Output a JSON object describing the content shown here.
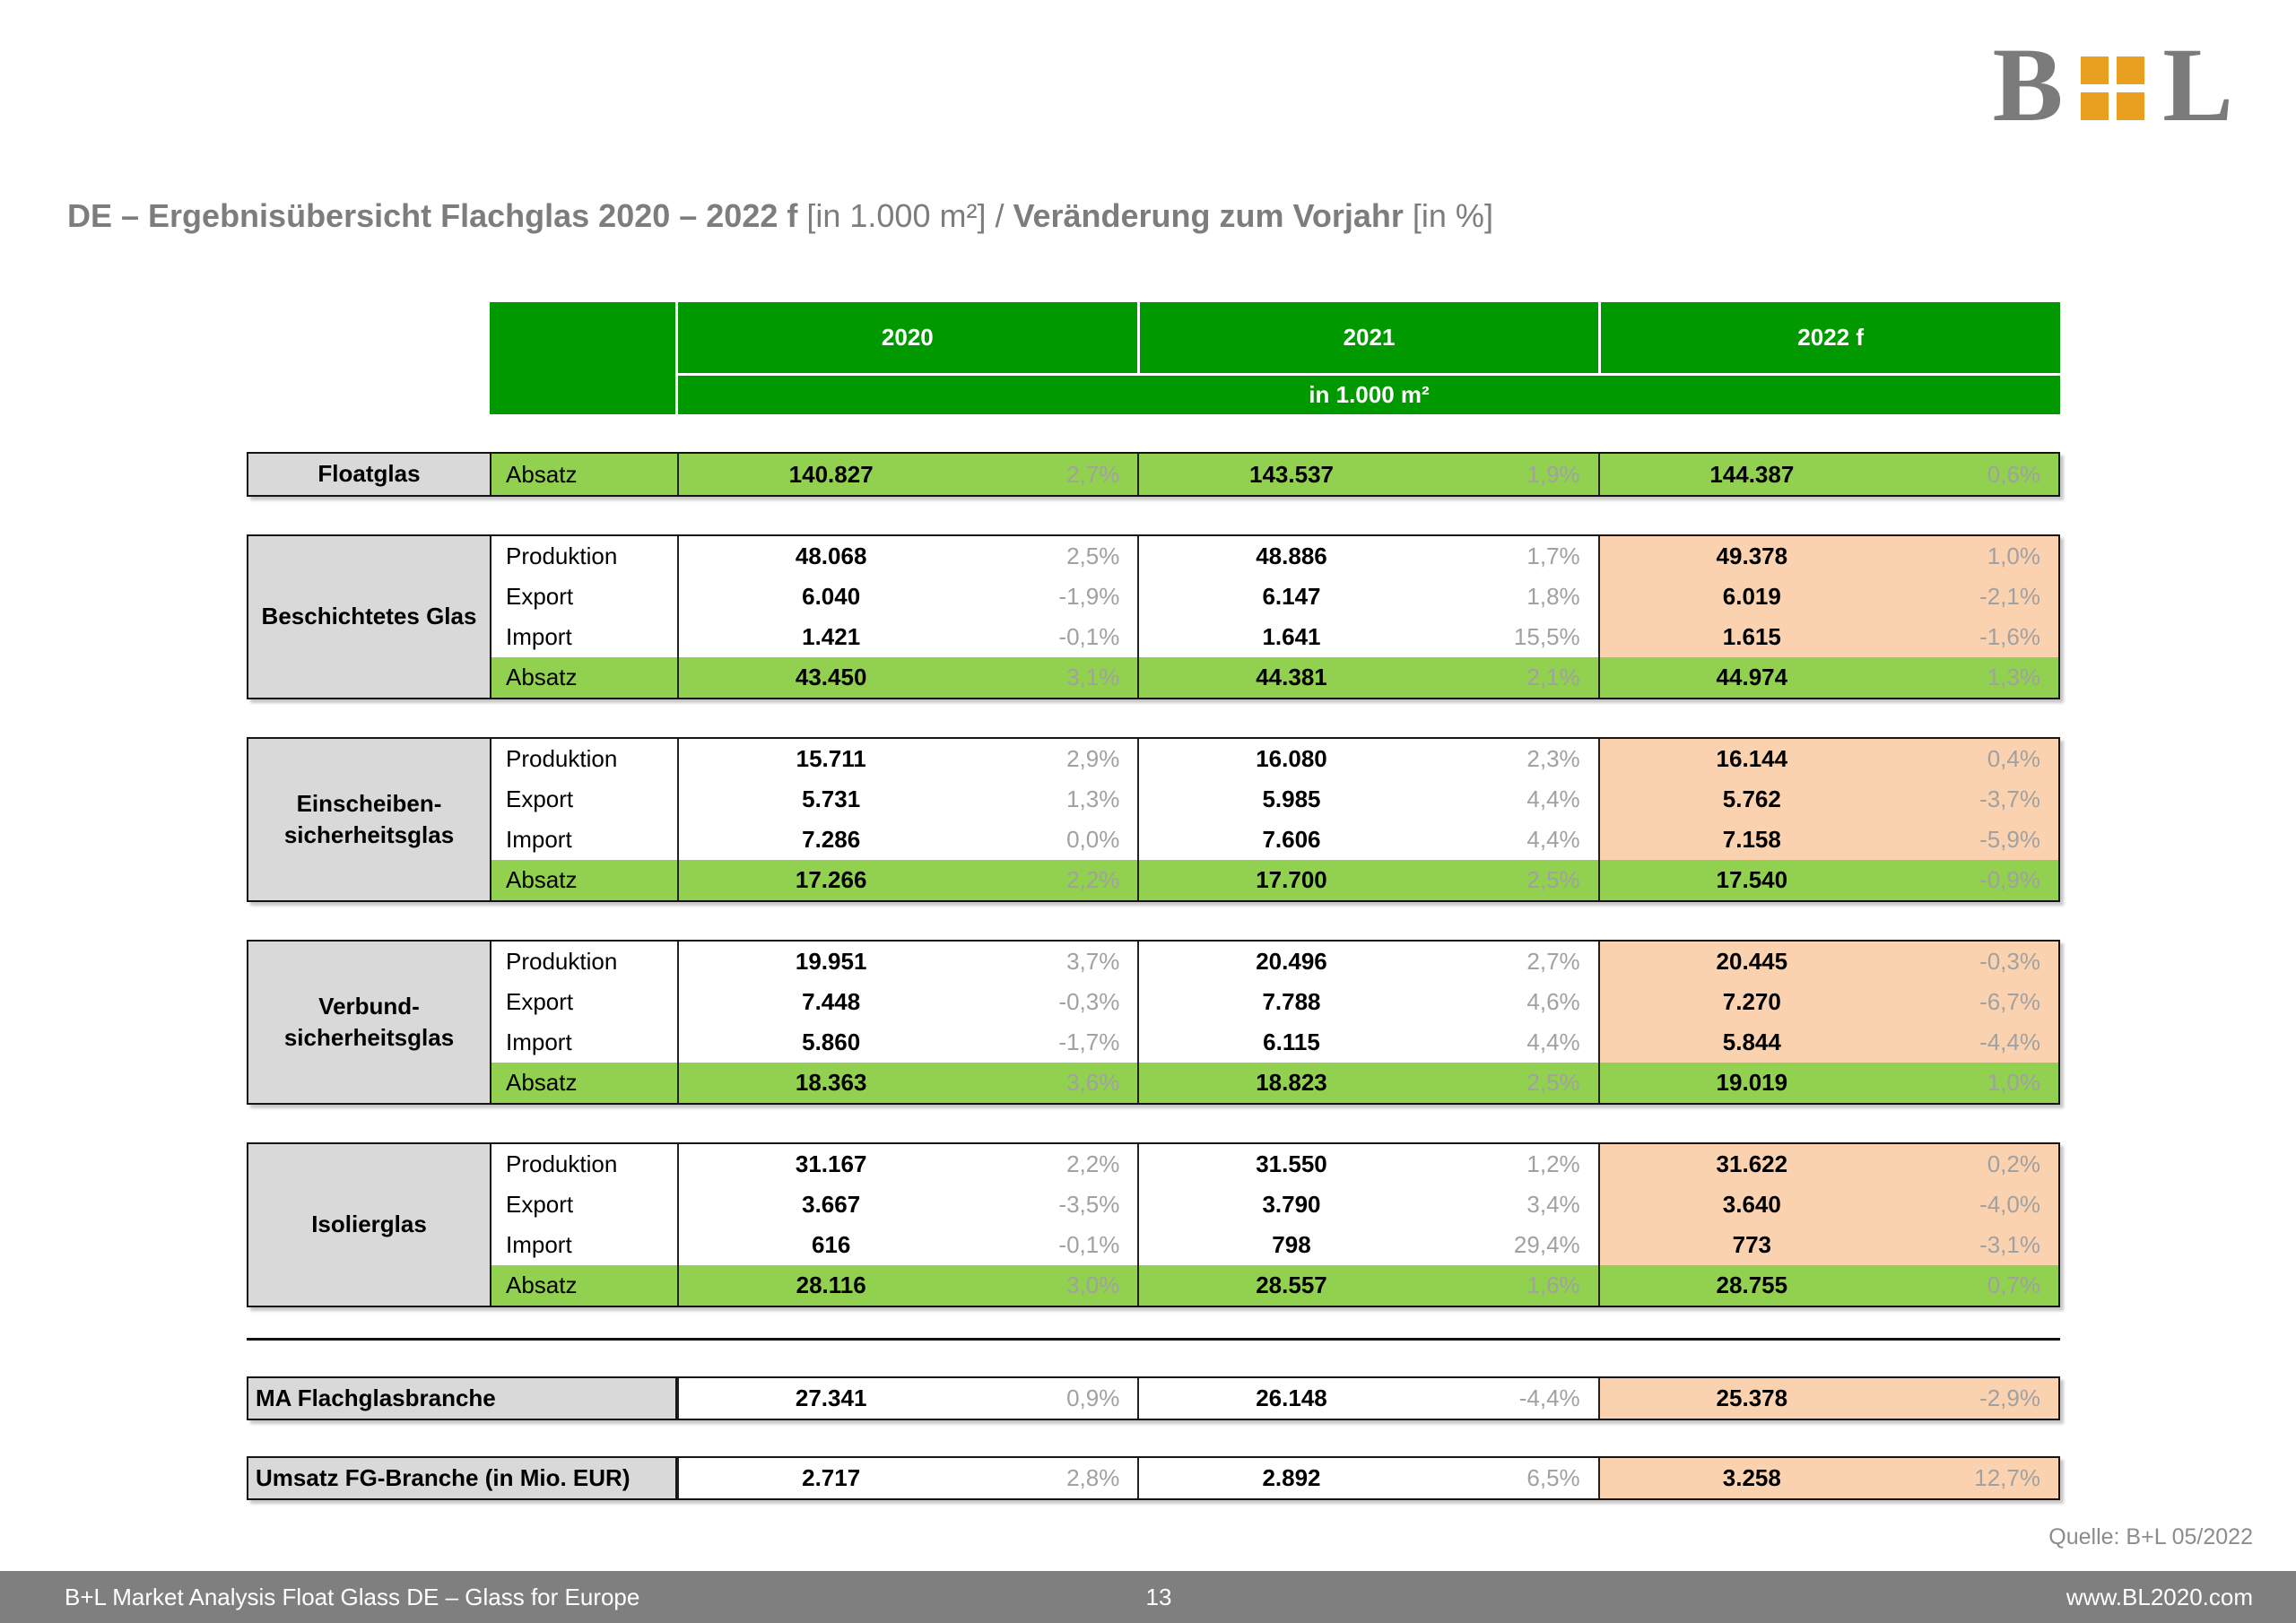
{
  "logo": {
    "letter_left": "B",
    "letter_right": "L",
    "squares_color": "#E9A021",
    "letters_color": "#7B7B7B"
  },
  "title": {
    "bold1": "DE – Ergebnisübersicht Flachglas 2020 – 2022 f",
    "light1": " [in 1.000 m²] / ",
    "bold2": "Veränderung zum Vorjahr",
    "light2": " [in %]"
  },
  "table": {
    "years": [
      "2020",
      "2021",
      "2022 f"
    ],
    "unit_header": "in 1.000 m²",
    "colors": {
      "header_green": "#009A00",
      "absatz_green": "#92D050",
      "forecast_peach": "#FBD2AF",
      "label_gray": "#D9D9D9",
      "percent_gray": "#A1A1A1"
    },
    "sections": [
      {
        "label_lines": [
          "Floatglas"
        ],
        "rows": [
          {
            "sub": "Absatz",
            "kind": "absatz",
            "cells": [
              [
                "140.827",
                "2,7%"
              ],
              [
                "143.537",
                "1,9%"
              ],
              [
                "144.387",
                "0,6%"
              ]
            ]
          }
        ]
      },
      {
        "label_lines": [
          "Beschichtetes Glas"
        ],
        "rows": [
          {
            "sub": "Produktion",
            "kind": "plain",
            "cells": [
              [
                "48.068",
                "2,5%"
              ],
              [
                "48.886",
                "1,7%"
              ],
              [
                "49.378",
                "1,0%"
              ]
            ]
          },
          {
            "sub": "Export",
            "kind": "plain",
            "cells": [
              [
                "6.040",
                "-1,9%"
              ],
              [
                "6.147",
                "1,8%"
              ],
              [
                "6.019",
                "-2,1%"
              ]
            ]
          },
          {
            "sub": "Import",
            "kind": "plain",
            "cells": [
              [
                "1.421",
                "-0,1%"
              ],
              [
                "1.641",
                "15,5%"
              ],
              [
                "1.615",
                "-1,6%"
              ]
            ]
          },
          {
            "sub": "Absatz",
            "kind": "absatz",
            "cells": [
              [
                "43.450",
                "3,1%"
              ],
              [
                "44.381",
                "2,1%"
              ],
              [
                "44.974",
                "1,3%"
              ]
            ]
          }
        ]
      },
      {
        "label_lines": [
          "Einscheiben-",
          "sicherheitsglas"
        ],
        "rows": [
          {
            "sub": "Produktion",
            "kind": "plain",
            "cells": [
              [
                "15.711",
                "2,9%"
              ],
              [
                "16.080",
                "2,3%"
              ],
              [
                "16.144",
                "0,4%"
              ]
            ]
          },
          {
            "sub": "Export",
            "kind": "plain",
            "cells": [
              [
                "5.731",
                "1,3%"
              ],
              [
                "5.985",
                "4,4%"
              ],
              [
                "5.762",
                "-3,7%"
              ]
            ]
          },
          {
            "sub": "Import",
            "kind": "plain",
            "cells": [
              [
                "7.286",
                "0,0%"
              ],
              [
                "7.606",
                "4,4%"
              ],
              [
                "7.158",
                "-5,9%"
              ]
            ]
          },
          {
            "sub": "Absatz",
            "kind": "absatz",
            "cells": [
              [
                "17.266",
                "2,2%"
              ],
              [
                "17.700",
                "2,5%"
              ],
              [
                "17.540",
                "-0,9%"
              ]
            ]
          }
        ]
      },
      {
        "label_lines": [
          "Verbund-",
          "sicherheitsglas"
        ],
        "rows": [
          {
            "sub": "Produktion",
            "kind": "plain",
            "cells": [
              [
                "19.951",
                "3,7%"
              ],
              [
                "20.496",
                "2,7%"
              ],
              [
                "20.445",
                "-0,3%"
              ]
            ]
          },
          {
            "sub": "Export",
            "kind": "plain",
            "cells": [
              [
                "7.448",
                "-0,3%"
              ],
              [
                "7.788",
                "4,6%"
              ],
              [
                "7.270",
                "-6,7%"
              ]
            ]
          },
          {
            "sub": "Import",
            "kind": "plain",
            "cells": [
              [
                "5.860",
                "-1,7%"
              ],
              [
                "6.115",
                "4,4%"
              ],
              [
                "5.844",
                "-4,4%"
              ]
            ]
          },
          {
            "sub": "Absatz",
            "kind": "absatz",
            "cells": [
              [
                "18.363",
                "3,6%"
              ],
              [
                "18.823",
                "2,5%"
              ],
              [
                "19.019",
                "1,0%"
              ]
            ]
          }
        ]
      },
      {
        "label_lines": [
          "Isolierglas"
        ],
        "rows": [
          {
            "sub": "Produktion",
            "kind": "plain",
            "cells": [
              [
                "31.167",
                "2,2%"
              ],
              [
                "31.550",
                "1,2%"
              ],
              [
                "31.622",
                "0,2%"
              ]
            ]
          },
          {
            "sub": "Export",
            "kind": "plain",
            "cells": [
              [
                "3.667",
                "-3,5%"
              ],
              [
                "3.790",
                "3,4%"
              ],
              [
                "3.640",
                "-4,0%"
              ]
            ]
          },
          {
            "sub": "Import",
            "kind": "plain",
            "cells": [
              [
                "616",
                "-0,1%"
              ],
              [
                "798",
                "29,4%"
              ],
              [
                "773",
                "-3,1%"
              ]
            ]
          },
          {
            "sub": "Absatz",
            "kind": "absatz",
            "cells": [
              [
                "28.116",
                "3,0%"
              ],
              [
                "28.557",
                "1,6%"
              ],
              [
                "28.755",
                "0,7%"
              ]
            ]
          }
        ]
      }
    ],
    "summary_rows": [
      {
        "label": "MA Flachglasbranche",
        "cells": [
          [
            "27.341",
            "0,9%"
          ],
          [
            "26.148",
            "-4,4%"
          ],
          [
            "25.378",
            "-2,9%"
          ]
        ]
      },
      {
        "label": "Umsatz FG-Branche (in Mio. EUR)",
        "cells": [
          [
            "2.717",
            "2,8%"
          ],
          [
            "2.892",
            "6,5%"
          ],
          [
            "3.258",
            "12,7%"
          ]
        ]
      }
    ]
  },
  "source_note": "Quelle: B+L 05/2022",
  "footer": {
    "left": "B+L Market Analysis Float Glass DE – Glass for Europe",
    "page_number": "13",
    "right": "www.BL2020.com"
  }
}
